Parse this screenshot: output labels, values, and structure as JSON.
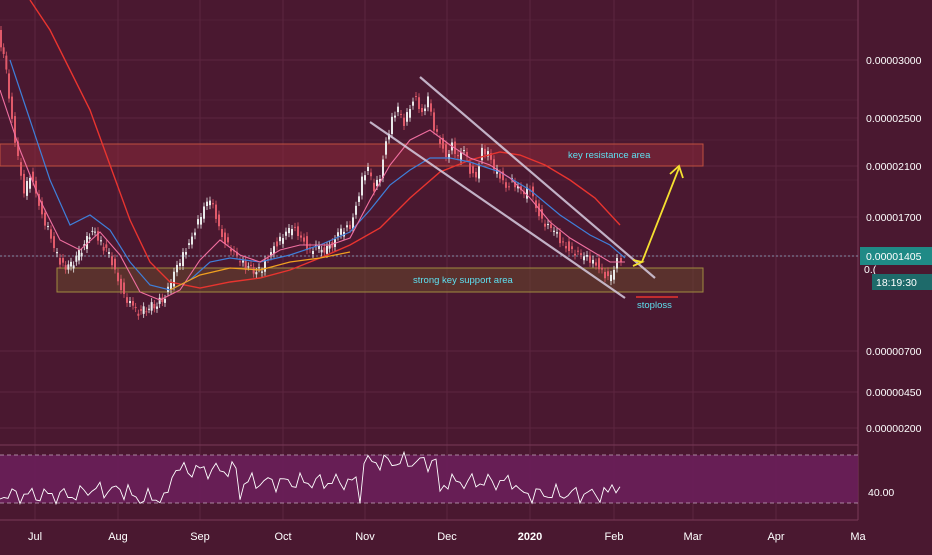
{
  "colors": {
    "background": "#4a1830",
    "grid": "#5c2640",
    "axis_text": "#ffffff",
    "candle_up": "#e9e9e9",
    "candle_down": "#e05a6a",
    "ma_red": "#e8342f",
    "ma_blue": "#3f7fd9",
    "ma_pink": "#f06fa0",
    "ma_orange": "#f0a020",
    "annotation_text": "#5ee0f0",
    "arrow": "#f5e030",
    "channel": "#d7cde0",
    "price_badge": "#1f8a86",
    "rsi_band": "#6a1f5a",
    "rsi_line": "#ffffff",
    "stoploss": "#e8342f"
  },
  "chart_data": [
    {
      "type": "line",
      "panel": "price",
      "scale": "log",
      "ylim": [
        1.7e-06,
        3.8e-06
      ],
      "x_tick_labels": [
        "Jul",
        "Aug",
        "Sep",
        "Oct",
        "Nov",
        "Dec",
        "2020",
        "Feb",
        "Mar",
        "Apr",
        "Ma"
      ],
      "y_tick_labels": [
        "0.00003000",
        "0.00002500",
        "0.00002100",
        "0.00001700",
        "0.00001405",
        "0.00001000",
        "0.00000700",
        "0.00000450",
        "0.00000200"
      ],
      "current_price": "0.00001405",
      "countdown": "18:19:30",
      "grid": true,
      "annotations": [
        {
          "text": "key resistance area",
          "kind": "zone"
        },
        {
          "text": "strong key support area",
          "kind": "zone"
        },
        {
          "text": "stoploss",
          "kind": "level"
        }
      ],
      "series": [
        {
          "kind": "candles",
          "color_up": "#e9e9e9",
          "color_down": "#e05a6a"
        },
        {
          "kind": "moving-average",
          "color": "#e8342f"
        },
        {
          "kind": "moving-average",
          "color": "#3f7fd9"
        },
        {
          "kind": "moving-average",
          "color": "#f06fa0"
        },
        {
          "kind": "moving-average",
          "color": "#f0a020"
        }
      ]
    },
    {
      "type": "line",
      "panel": "oscillator",
      "y_tick_labels": [
        "40.00"
      ],
      "band": "upper and lower dashed bounds",
      "series": [
        {
          "kind": "oscillator-line",
          "color": "#ffffff"
        }
      ]
    }
  ],
  "labels": {
    "resistance": "key resistance area",
    "support": "strong key support area",
    "stoploss": "stoploss",
    "rsi_value": "40.00",
    "price": "0.00001405",
    "countdown": "18:19:30",
    "partial_tick": "0.("
  }
}
